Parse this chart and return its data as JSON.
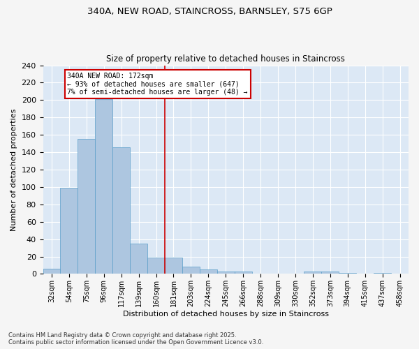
{
  "title_line1": "340A, NEW ROAD, STAINCROSS, BARNSLEY, S75 6GP",
  "title_line2": "Size of property relative to detached houses in Staincross",
  "xlabel": "Distribution of detached houses by size in Staincross",
  "ylabel": "Number of detached properties",
  "categories": [
    "32sqm",
    "54sqm",
    "75sqm",
    "96sqm",
    "117sqm",
    "139sqm",
    "160sqm",
    "181sqm",
    "203sqm",
    "224sqm",
    "245sqm",
    "266sqm",
    "288sqm",
    "309sqm",
    "330sqm",
    "352sqm",
    "373sqm",
    "394sqm",
    "415sqm",
    "437sqm",
    "458sqm"
  ],
  "values": [
    6,
    99,
    155,
    201,
    146,
    35,
    19,
    19,
    8,
    5,
    3,
    3,
    0,
    0,
    0,
    3,
    3,
    1,
    0,
    1,
    0
  ],
  "bar_color": "#adc6e0",
  "bar_edge_color": "#5a9ec9",
  "property_label": "340A NEW ROAD: 172sqm",
  "annotation_line1": "← 93% of detached houses are smaller (647)",
  "annotation_line2": "7% of semi-detached houses are larger (48) →",
  "vline_color": "#cc0000",
  "annotation_box_color": "#cc0000",
  "ylim": [
    0,
    240
  ],
  "yticks": [
    0,
    20,
    40,
    60,
    80,
    100,
    120,
    140,
    160,
    180,
    200,
    220,
    240
  ],
  "background_color": "#dce8f5",
  "grid_color": "#ffffff",
  "fig_background": "#f5f5f5",
  "footer_line1": "Contains HM Land Registry data © Crown copyright and database right 2025.",
  "footer_line2": "Contains public sector information licensed under the Open Government Licence v3.0."
}
